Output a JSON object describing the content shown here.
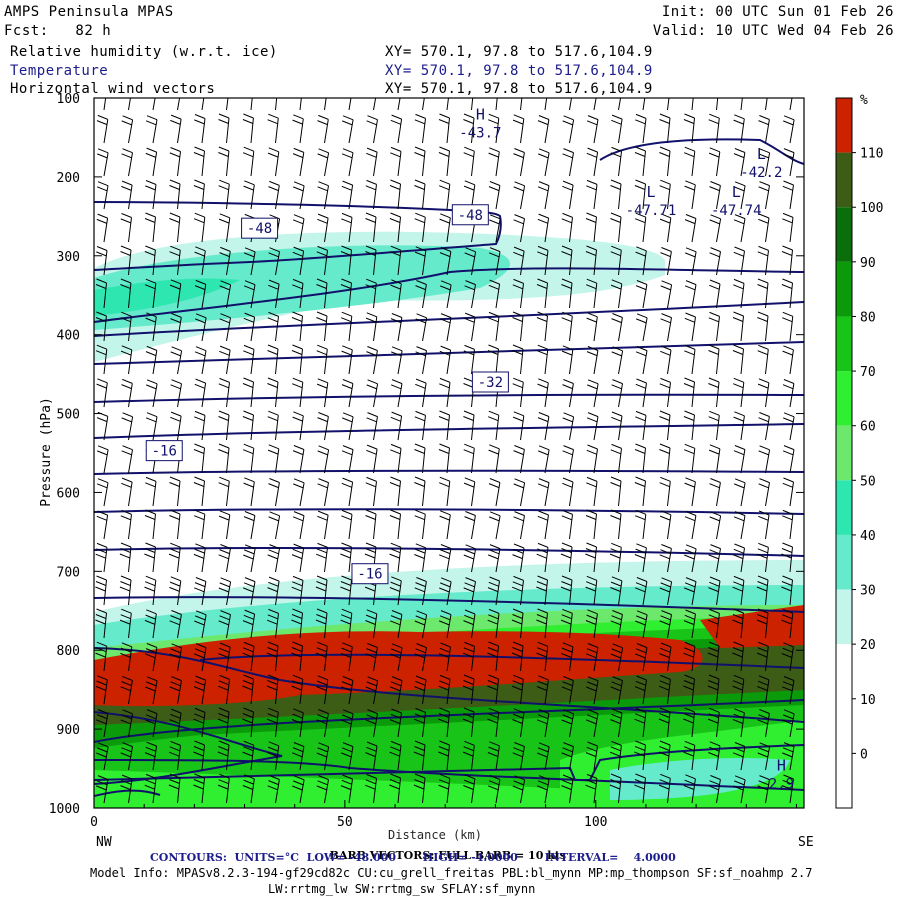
{
  "header": {
    "model": "AMPS Peninsula MPAS",
    "fcst": "Fcst:   82 h",
    "init": "Init: 00 UTC Sun 01 Feb 26",
    "valid": "Valid: 10 UTC Wed 04 Feb 26",
    "fields": [
      {
        "label": "Relative humidity (w.r.t. ice)",
        "xy": "XY= 570.1, 97.8 to 517.6,104.9"
      },
      {
        "label": "Temperature",
        "xy": "XY= 570.1, 97.8 to 517.6,104.9"
      },
      {
        "label": "Horizontal wind vectors",
        "xy": "XY= 570.1, 97.8 to 517.6,104.9"
      }
    ]
  },
  "footer": {
    "barb_left": "BARB VECTORS",
    "barb_mid": "FULL BARB = 10 kts",
    "distance_label": "Distance (km)",
    "contours": "CONTOURS:  UNITS=°C  LOW= -48.000       HIGH= -4.0000       INTERVAL=    4.0000",
    "model_info": "Model Info: MPASv8.2.3-194-gf29cd82c CU:cu_grell_freitas PBL:bl_mynn MP:mp_thompson SF:sf_noahmp 2.7",
    "model_info2": "LW:rrtmg_lw SW:rrtmg_sw SFLAY:sf_mynn"
  },
  "colors": {
    "rh_scale": [
      "#ffffff",
      "#ffffff",
      "#ffffff",
      "#c4f5ea",
      "#66eacc",
      "#2ee6b0",
      "#6ce86c",
      "#30ee30",
      "#18c418",
      "#0a9a0a",
      "#0a6e0a",
      "#3d5c16",
      "#cc2200"
    ],
    "contour": "#11116b",
    "axis": "#000000"
  },
  "chart_data": {
    "type": "heatmap",
    "title": "Relative humidity (w.r.t. ice), Temperature, Horizontal wind vectors",
    "xlabel": "Distance (km)",
    "ylabel": "Pressure (hPa)",
    "xlim": [
      0,
      141.5
    ],
    "ylim": [
      1000,
      100
    ],
    "x_ticks": [
      0,
      50,
      100
    ],
    "y_ticks": [
      100,
      200,
      300,
      400,
      500,
      600,
      700,
      800,
      900,
      1000
    ],
    "x_end_labels": {
      "left": "NW",
      "right": "SE"
    },
    "colorbar": {
      "unit": "%",
      "levels": [
        110,
        100,
        90,
        80,
        70,
        60,
        50,
        40,
        30,
        20,
        10,
        0
      ]
    },
    "contour_labels": [
      {
        "text": "-48",
        "x": 33,
        "p": 265
      },
      {
        "text": "-48",
        "x": 75,
        "p": 248
      },
      {
        "text": "-32",
        "x": 79,
        "p": 460
      },
      {
        "text": "-16",
        "x": 14,
        "p": 547
      },
      {
        "text": "-16",
        "x": 55,
        "p": 703
      }
    ],
    "extrema": [
      {
        "type": "H",
        "value": "-43.7",
        "x": 77,
        "p": 135
      },
      {
        "type": "L",
        "value": "-42.2",
        "x": 133,
        "p": 185
      },
      {
        "type": "L",
        "value": "-47.71",
        "x": 111,
        "p": 233
      },
      {
        "type": "L",
        "value": "-47.74",
        "x": 128,
        "p": 233
      },
      {
        "type": "H",
        "value": "2.9",
        "x": 137,
        "p": 960
      }
    ]
  }
}
